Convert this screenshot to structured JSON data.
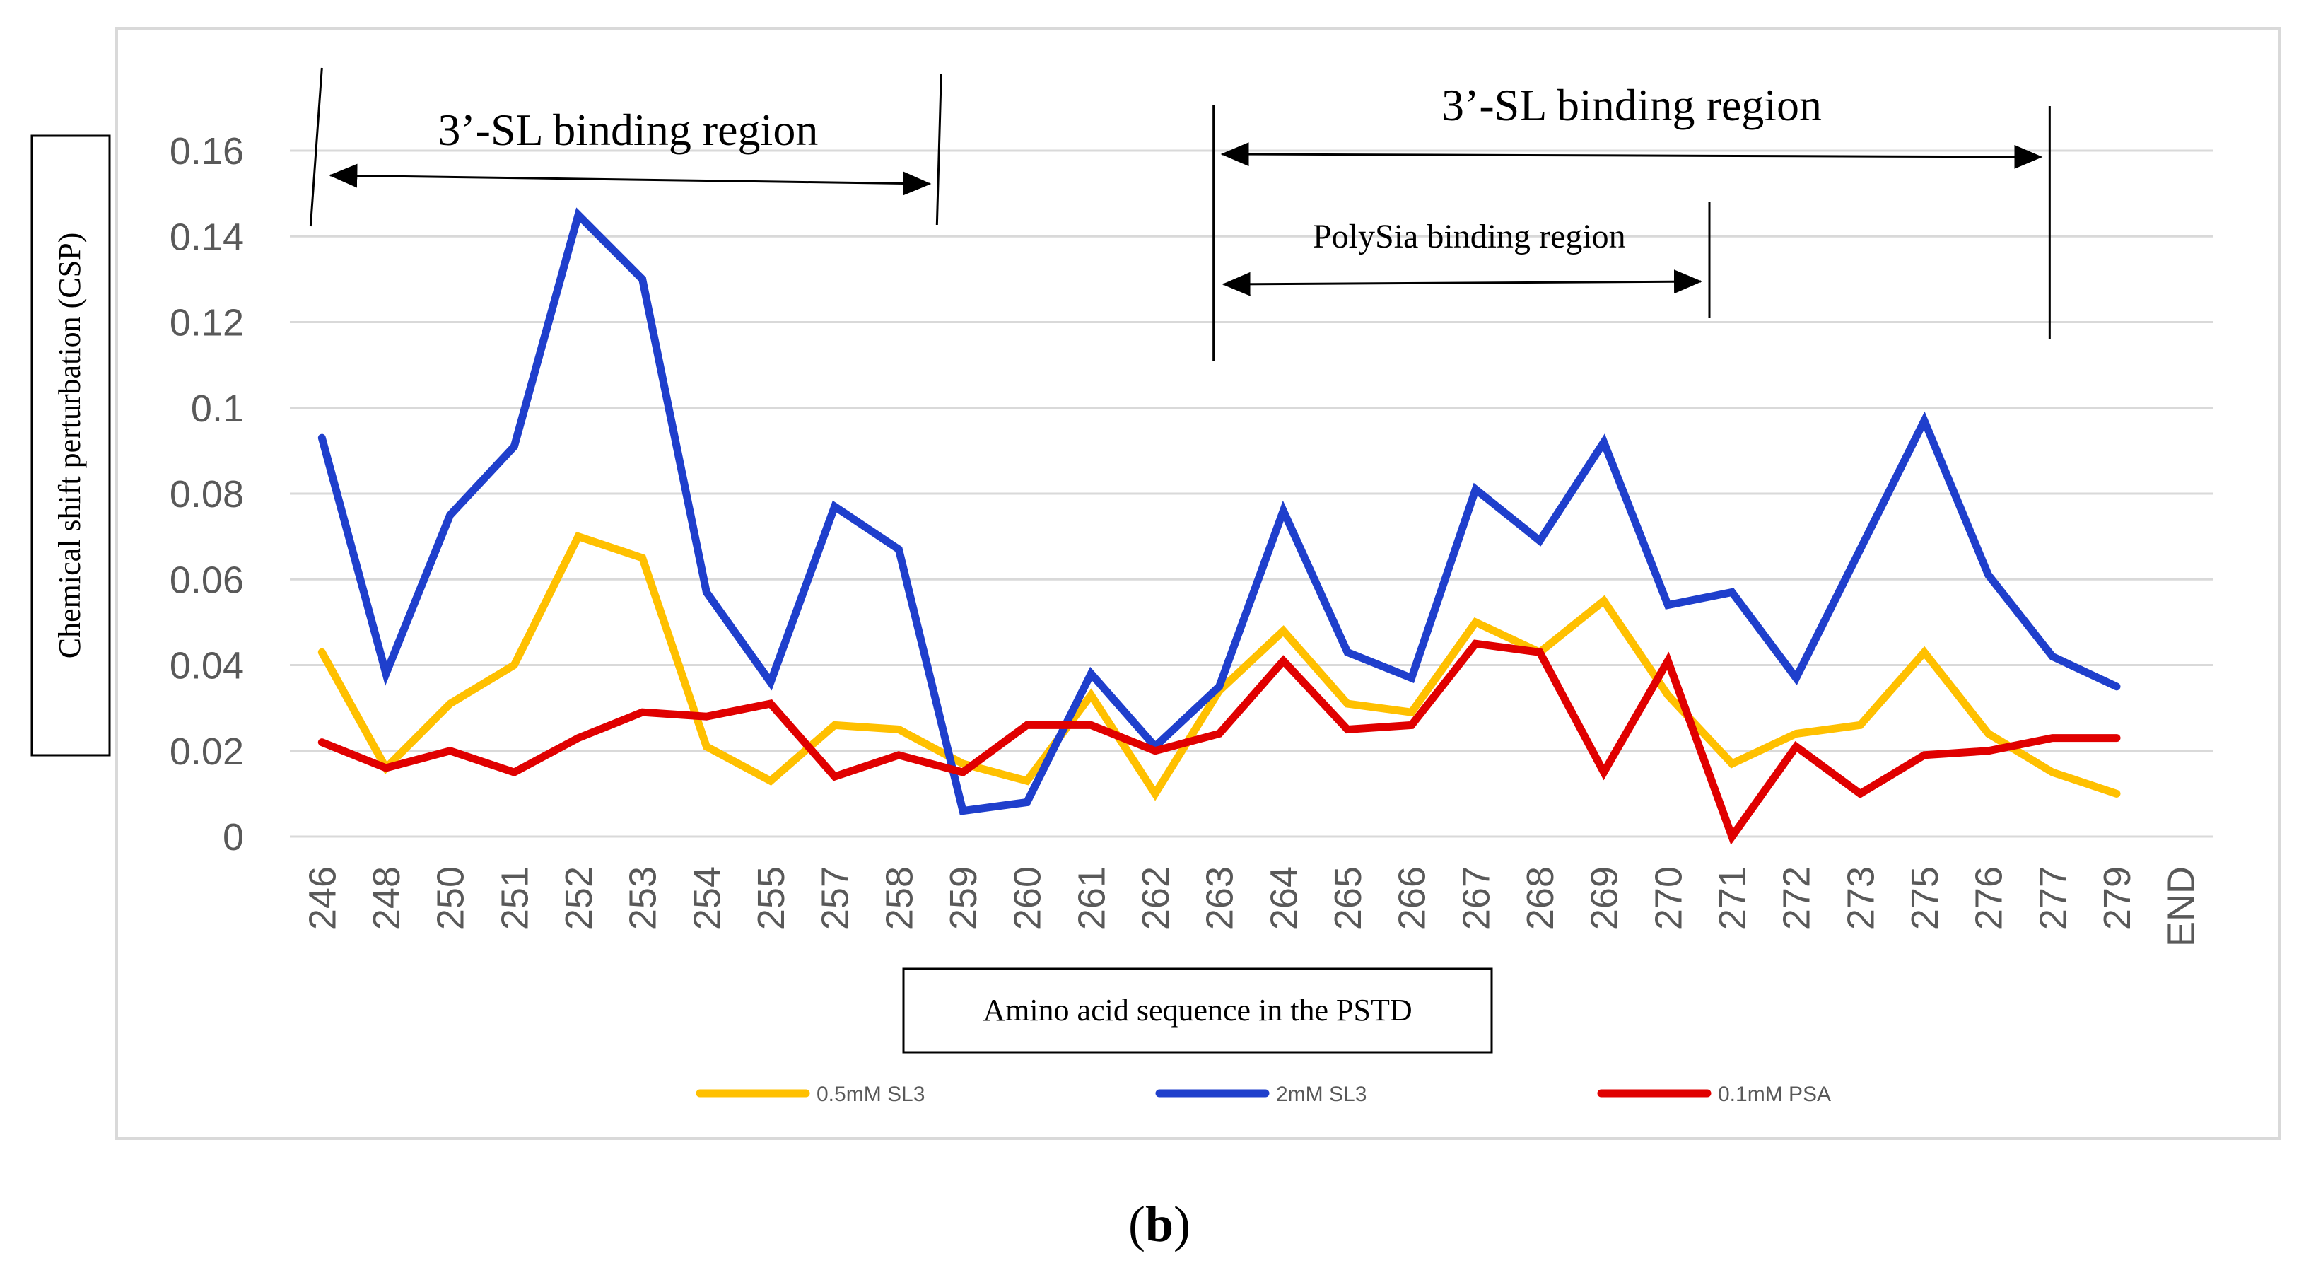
{
  "chart_data": {
    "type": "line",
    "xlabel": "Amino acid sequence in the PSTD",
    "ylabel": "Chemical shift perturbation (CSP)",
    "ylim": [
      0,
      0.16
    ],
    "yticks": [
      "0",
      "0.02",
      "0.04",
      "0.06",
      "0.08",
      "0.1",
      "0.12",
      "0.14",
      "0.16"
    ],
    "categories": [
      "246",
      "248",
      "250",
      "251",
      "252",
      "253",
      "254",
      "255",
      "257",
      "258",
      "259",
      "260",
      "261",
      "262",
      "263",
      "264",
      "265",
      "266",
      "267",
      "268",
      "269",
      "270",
      "271",
      "272",
      "273",
      "275",
      "276",
      "277",
      "279",
      "END"
    ],
    "grid": true,
    "legend_position": "bottom",
    "series": [
      {
        "name": "0.5mM SL3",
        "color": "#FFC000",
        "values": [
          0.043,
          0.016,
          0.031,
          0.04,
          0.07,
          0.065,
          0.021,
          0.013,
          0.026,
          0.025,
          0.017,
          0.013,
          0.033,
          0.01,
          0.034,
          0.048,
          0.031,
          0.029,
          0.05,
          0.043,
          0.055,
          0.033,
          0.017,
          0.024,
          0.026,
          0.043,
          0.024,
          0.015,
          0.01,
          null
        ]
      },
      {
        "name": "2mM SL3",
        "color": "#1F3FCC",
        "values": [
          0.093,
          0.038,
          0.075,
          0.091,
          0.145,
          0.13,
          0.057,
          0.036,
          0.077,
          0.067,
          0.006,
          0.008,
          0.038,
          0.021,
          0.035,
          0.076,
          0.043,
          0.037,
          0.081,
          0.069,
          0.092,
          0.054,
          0.057,
          0.037,
          0.067,
          0.097,
          0.061,
          0.042,
          0.035,
          null
        ]
      },
      {
        "name": "0.1mM PSA",
        "color": "#E00000",
        "values": [
          0.022,
          0.016,
          0.02,
          0.015,
          0.023,
          0.029,
          0.028,
          0.031,
          0.014,
          0.019,
          0.015,
          0.026,
          0.026,
          0.02,
          0.024,
          0.041,
          0.025,
          0.026,
          0.045,
          0.043,
          0.015,
          0.041,
          0.0,
          0.021,
          0.01,
          0.019,
          0.02,
          0.023,
          0.023,
          null
        ]
      }
    ],
    "annotations": [
      {
        "id": "sl-left",
        "text": "3’-SL binding region",
        "from": "246",
        "to": "258"
      },
      {
        "id": "sl-right",
        "text": "3’-SL binding region",
        "from": "263",
        "to": "277"
      },
      {
        "id": "polysia",
        "text": "PolySia binding region",
        "from": "263",
        "to": "271"
      }
    ]
  },
  "caption": {
    "open": "(",
    "letter": "b",
    "close": ")"
  }
}
